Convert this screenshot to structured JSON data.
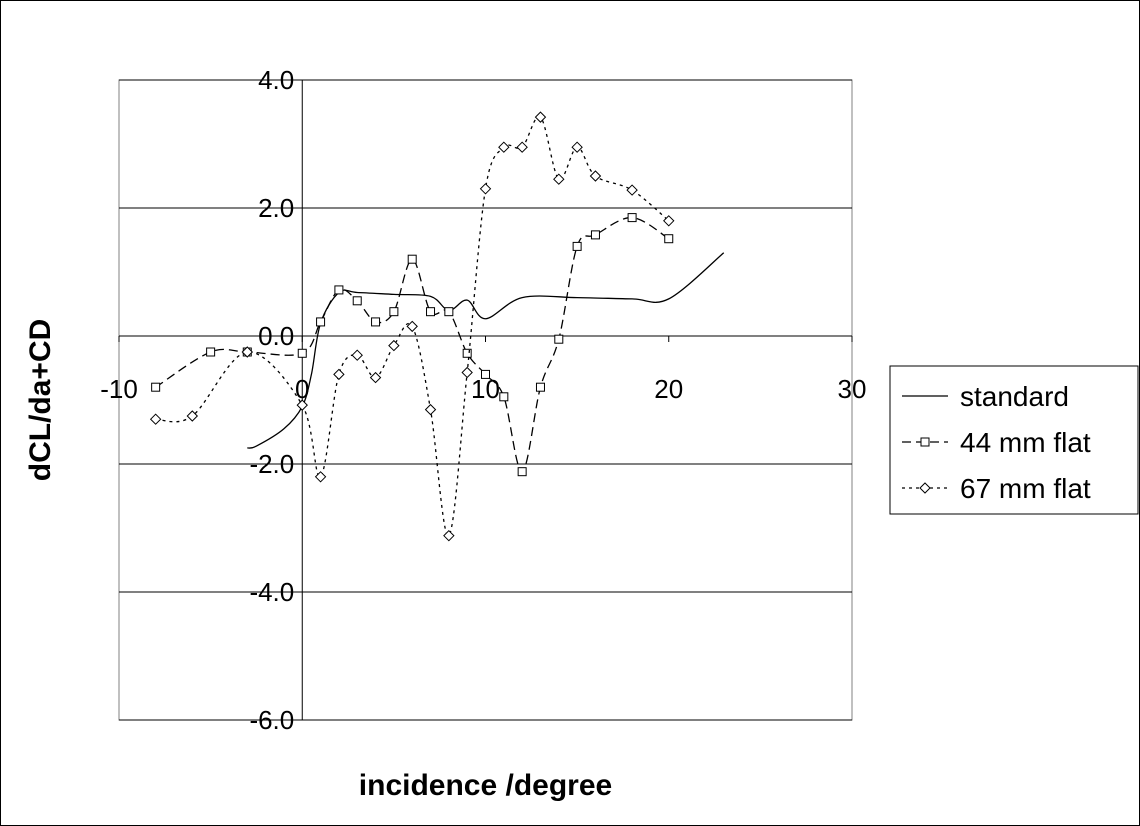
{
  "chart_data": {
    "type": "line",
    "title": "",
    "xlabel": "incidence /degree",
    "ylabel": "dCL/da+CD",
    "xlim": [
      -10,
      30
    ],
    "ylim": [
      -6,
      4
    ],
    "x_ticks": [
      "-10",
      "0",
      "10",
      "20",
      "30"
    ],
    "y_ticks": [
      "4.0",
      "2.0",
      "0.0",
      "-2.0",
      "-4.0",
      "-6.0"
    ],
    "grid": "horizontal major gridlines",
    "legend_position": "right",
    "series": [
      {
        "name": "standard",
        "style": "solid",
        "marker": "none",
        "points": [
          [
            -3,
            -1.75
          ],
          [
            -2.5,
            -1.72
          ],
          [
            -1,
            -1.45
          ],
          [
            0,
            -1.1
          ],
          [
            0.5,
            -0.6
          ],
          [
            1,
            0.2
          ],
          [
            2,
            0.68
          ],
          [
            3,
            0.68
          ],
          [
            5,
            0.65
          ],
          [
            7,
            0.62
          ],
          [
            8,
            0.4
          ],
          [
            9,
            0.56
          ],
          [
            10,
            0.27
          ],
          [
            12,
            0.6
          ],
          [
            15,
            0.6
          ],
          [
            18,
            0.58
          ],
          [
            20,
            0.58
          ],
          [
            23,
            1.3
          ]
        ]
      },
      {
        "name": "44 mm flat",
        "style": "dashed",
        "marker": "square",
        "points": [
          [
            -8,
            -0.8
          ],
          [
            -5,
            -0.25
          ],
          [
            -3,
            -0.25
          ],
          [
            0,
            -0.27
          ],
          [
            1,
            0.22
          ],
          [
            2,
            0.72
          ],
          [
            3,
            0.55
          ],
          [
            4,
            0.22
          ],
          [
            5,
            0.38
          ],
          [
            6,
            1.2
          ],
          [
            7,
            0.38
          ],
          [
            8,
            0.38
          ],
          [
            9,
            -0.27
          ],
          [
            10,
            -0.6
          ],
          [
            11,
            -0.95
          ],
          [
            12,
            -2.12
          ],
          [
            13,
            -0.8
          ],
          [
            14,
            -0.05
          ],
          [
            15,
            1.4
          ],
          [
            16,
            1.58
          ],
          [
            18,
            1.85
          ],
          [
            20,
            1.52
          ]
        ]
      },
      {
        "name": "67 mm flat",
        "style": "dotted",
        "marker": "diamond",
        "points": [
          [
            -8,
            -1.3
          ],
          [
            -6,
            -1.25
          ],
          [
            -3,
            -0.25
          ],
          [
            0,
            -1.08
          ],
          [
            1,
            -2.2
          ],
          [
            2,
            -0.6
          ],
          [
            3,
            -0.3
          ],
          [
            4,
            -0.65
          ],
          [
            5,
            -0.15
          ],
          [
            6,
            0.15
          ],
          [
            7,
            -1.15
          ],
          [
            8,
            -3.12
          ],
          [
            9,
            -0.57
          ],
          [
            10,
            2.3
          ],
          [
            11,
            2.95
          ],
          [
            12,
            2.95
          ],
          [
            13,
            3.42
          ],
          [
            14,
            2.45
          ],
          [
            15,
            2.95
          ],
          [
            16,
            2.5
          ],
          [
            18,
            2.28
          ],
          [
            20,
            1.8
          ]
        ]
      }
    ]
  }
}
